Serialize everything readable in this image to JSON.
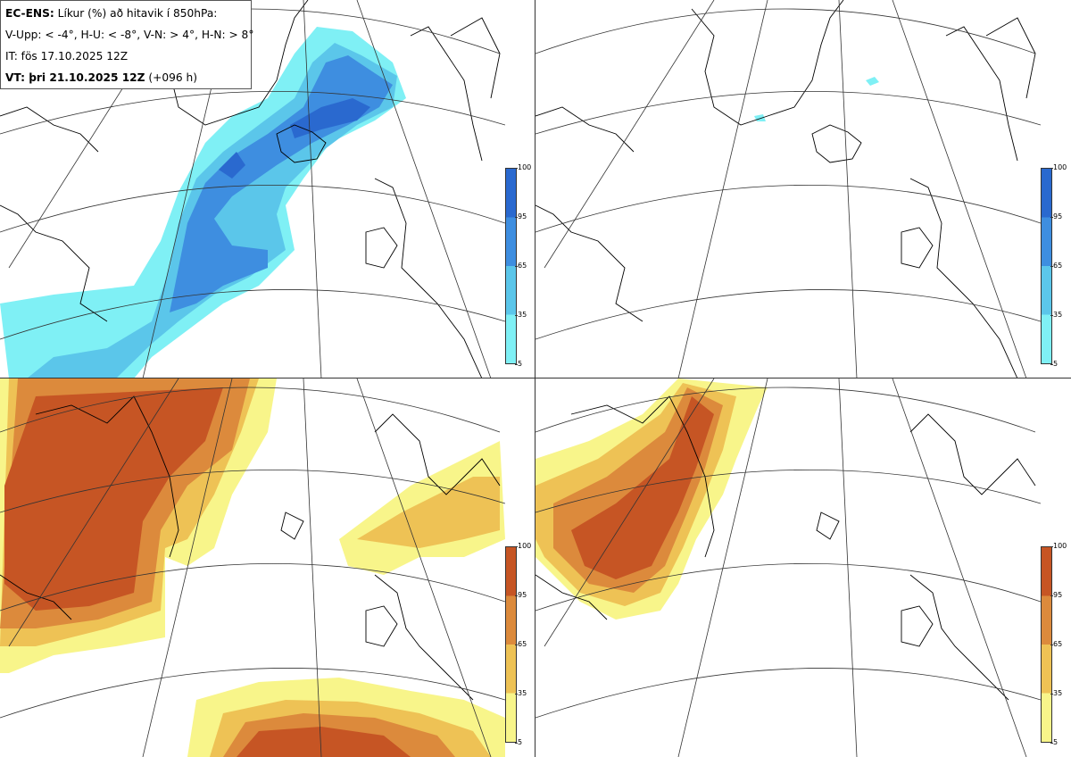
{
  "legend": {
    "title_bold": "EC-ENS:",
    "title_rest": " Líkur (%) að hitavik í 850hPa:",
    "definitions": "V-Upp: < -4°, H-U: < -8°, V-N: > 4°, H-N: > 8°",
    "initial_time": "IT: fös 17.10.2025 12Z",
    "valid_bold": "VT: þri 21.10.2025 12Z",
    "valid_rest": " (+096 h)"
  },
  "panels": [
    {
      "name": "V-Upp",
      "palette": "blue"
    },
    {
      "name": "H-U",
      "palette": "blue"
    },
    {
      "name": "V-N",
      "palette": "orange"
    },
    {
      "name": "H-N",
      "palette": "orange"
    }
  ],
  "colorbar": {
    "levels": [
      "100",
      "95",
      "65",
      "35",
      "5"
    ],
    "blue_colors": [
      "#2a69cf",
      "#3e8ee0",
      "#5bc6ea",
      "#7ff0f5"
    ],
    "orange_colors": [
      "#c65524",
      "#dc8a3c",
      "#eec255",
      "#f8f58a"
    ]
  }
}
